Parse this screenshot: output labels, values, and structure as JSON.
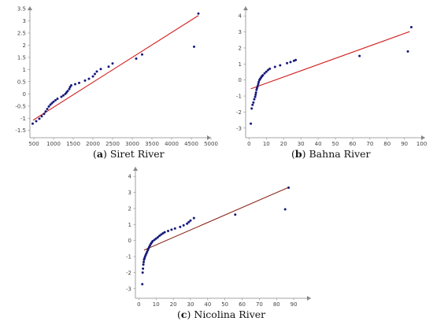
{
  "chart_data": [
    {
      "type": "scatter",
      "caption_label": "a",
      "caption_text": "Siret River",
      "xlim": [
        400,
        5000
      ],
      "ylim": [
        -1.8,
        3.6
      ],
      "x_ticks": [
        500,
        1000,
        1500,
        2000,
        2500,
        3000,
        3500,
        4000,
        4500,
        5000
      ],
      "y_ticks": [
        -1.5,
        -1,
        -0.5,
        0,
        0.5,
        1,
        1.5,
        2,
        2.5,
        3,
        3.5
      ],
      "points": [
        [
          470,
          -1.22
        ],
        [
          560,
          -1.12
        ],
        [
          640,
          -1.02
        ],
        [
          700,
          -0.92
        ],
        [
          760,
          -0.82
        ],
        [
          800,
          -0.72
        ],
        [
          840,
          -0.62
        ],
        [
          880,
          -0.52
        ],
        [
          920,
          -0.44
        ],
        [
          960,
          -0.38
        ],
        [
          1000,
          -0.32
        ],
        [
          1050,
          -0.26
        ],
        [
          1100,
          -0.2
        ],
        [
          1200,
          -0.12
        ],
        [
          1250,
          -0.06
        ],
        [
          1300,
          0.0
        ],
        [
          1330,
          0.06
        ],
        [
          1360,
          0.12
        ],
        [
          1400,
          0.2
        ],
        [
          1420,
          0.28
        ],
        [
          1450,
          0.35
        ],
        [
          1550,
          0.4
        ],
        [
          1650,
          0.45
        ],
        [
          1800,
          0.55
        ],
        [
          1900,
          0.62
        ],
        [
          2000,
          0.72
        ],
        [
          2050,
          0.82
        ],
        [
          2100,
          0.92
        ],
        [
          2200,
          1.02
        ],
        [
          2400,
          1.12
        ],
        [
          2500,
          1.25
        ],
        [
          3100,
          1.45
        ],
        [
          3250,
          1.62
        ],
        [
          4570,
          1.94
        ],
        [
          4680,
          3.3
        ]
      ],
      "fit_line": [
        [
          480,
          -1.08
        ],
        [
          4680,
          3.22
        ]
      ],
      "fit_color": "#d32020"
    },
    {
      "type": "scatter",
      "caption_label": "b",
      "caption_text": "Bahna River",
      "xlim": [
        -2,
        102
      ],
      "ylim": [
        -3.6,
        4.6
      ],
      "x_ticks": [
        0,
        10,
        20,
        30,
        40,
        50,
        60,
        70,
        80,
        90,
        100
      ],
      "y_ticks": [
        -3,
        -2,
        -1,
        0,
        1,
        2,
        3,
        4
      ],
      "points": [
        [
          1,
          -2.72
        ],
        [
          1.5,
          -1.78
        ],
        [
          2,
          -1.55
        ],
        [
          2.5,
          -1.4
        ],
        [
          3,
          -1.2
        ],
        [
          3.5,
          -1.05
        ],
        [
          3.8,
          -0.92
        ],
        [
          4,
          -0.78
        ],
        [
          4.3,
          -0.62
        ],
        [
          4.6,
          -0.5
        ],
        [
          5,
          -0.38
        ],
        [
          5.3,
          -0.25
        ],
        [
          5.6,
          -0.12
        ],
        [
          6,
          0.0
        ],
        [
          6.5,
          0.08
        ],
        [
          7,
          0.16
        ],
        [
          7.5,
          0.24
        ],
        [
          8,
          0.3
        ],
        [
          9,
          0.42
        ],
        [
          10,
          0.52
        ],
        [
          11,
          0.62
        ],
        [
          12,
          0.7
        ],
        [
          15,
          0.82
        ],
        [
          18,
          0.92
        ],
        [
          22,
          1.05
        ],
        [
          24,
          1.12
        ],
        [
          26,
          1.2
        ],
        [
          27,
          1.25
        ],
        [
          64,
          1.5
        ],
        [
          92,
          1.78
        ],
        [
          94,
          3.3
        ]
      ],
      "fit_line": [
        [
          1,
          -0.55
        ],
        [
          93,
          3.02
        ]
      ],
      "fit_color": "#d32020"
    },
    {
      "type": "scatter",
      "caption_label": "c",
      "caption_text": "Nicolina River",
      "xlim": [
        -2,
        100
      ],
      "ylim": [
        -3.6,
        4.6
      ],
      "x_ticks": [
        0,
        10,
        20,
        30,
        40,
        50,
        60,
        70,
        80,
        90
      ],
      "y_ticks": [
        -3,
        -2,
        -1,
        0,
        1,
        2,
        3,
        4
      ],
      "points": [
        [
          2,
          -2.72
        ],
        [
          2.2,
          -2.0
        ],
        [
          2.4,
          -1.75
        ],
        [
          2.6,
          -1.5
        ],
        [
          2.8,
          -1.35
        ],
        [
          3,
          -1.2
        ],
        [
          3.3,
          -1.1
        ],
        [
          3.6,
          -1.0
        ],
        [
          4,
          -0.9
        ],
        [
          4.4,
          -0.8
        ],
        [
          4.8,
          -0.7
        ],
        [
          5.2,
          -0.6
        ],
        [
          5.6,
          -0.5
        ],
        [
          6,
          -0.4
        ],
        [
          6.5,
          -0.3
        ],
        [
          7,
          -0.2
        ],
        [
          7.5,
          -0.12
        ],
        [
          8,
          -0.04
        ],
        [
          9,
          0.04
        ],
        [
          10,
          0.12
        ],
        [
          11,
          0.2
        ],
        [
          12,
          0.3
        ],
        [
          13,
          0.38
        ],
        [
          14,
          0.45
        ],
        [
          15,
          0.52
        ],
        [
          17,
          0.6
        ],
        [
          19,
          0.68
        ],
        [
          21,
          0.75
        ],
        [
          24,
          0.85
        ],
        [
          26,
          0.95
        ],
        [
          28,
          1.05
        ],
        [
          29,
          1.15
        ],
        [
          30,
          1.25
        ],
        [
          32,
          1.4
        ],
        [
          56,
          1.62
        ],
        [
          85,
          1.95
        ],
        [
          87,
          3.3
        ]
      ],
      "fit_line": [
        [
          3,
          -0.6
        ],
        [
          87,
          3.32
        ]
      ],
      "fit_color": "#8c2a1c"
    }
  ],
  "point_color": "#16197a",
  "axis_color": "#888888"
}
